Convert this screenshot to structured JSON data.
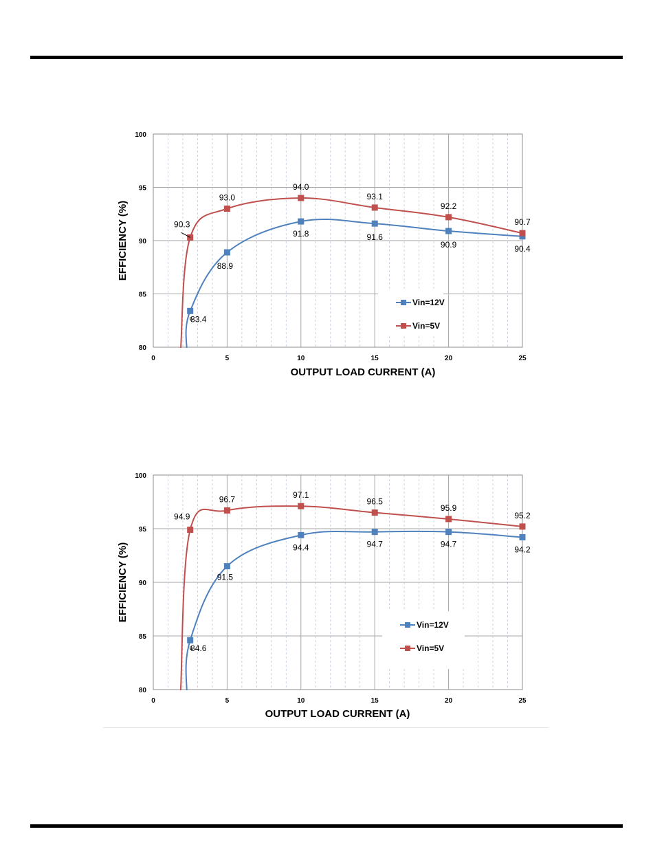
{
  "chart_data": [
    {
      "type": "line",
      "xlabel": "OUTPUT LOAD CURRENT  (A)",
      "ylabel": "EFFICIENCY (%)",
      "xlim": [
        0,
        25
      ],
      "ylim": [
        80,
        100
      ],
      "x_ticks": [
        "0",
        "5",
        "10",
        "15",
        "20",
        "25"
      ],
      "y_ticks": [
        "80",
        "85",
        "90",
        "95",
        "100"
      ],
      "grid": true,
      "legend_position": "bottom-right",
      "series": [
        {
          "name": "Vin=12V",
          "color": "#4F81BD",
          "x": [
            2.5,
            5,
            10,
            15,
            20,
            25
          ],
          "y": [
            83.4,
            88.9,
            91.8,
            91.6,
            90.9,
            90.4
          ],
          "labels": [
            "83.4",
            "88.9",
            "91.8",
            "91.6",
            "90.9",
            "90.4"
          ]
        },
        {
          "name": "Vin=5V",
          "color": "#C0504D",
          "x": [
            2.5,
            5,
            10,
            15,
            20,
            25
          ],
          "y": [
            90.3,
            93.0,
            94.0,
            93.1,
            92.2,
            90.7
          ],
          "labels": [
            "90.3",
            "93.0",
            "94.0",
            "93.1",
            "92.2",
            "90.7"
          ]
        }
      ]
    },
    {
      "type": "line",
      "xlabel": "OUTPUT LOAD CURRENT  (A)",
      "ylabel": "EFFICIENCY (%)",
      "xlim": [
        0,
        25
      ],
      "ylim": [
        80,
        100
      ],
      "x_ticks": [
        "0",
        "5",
        "10",
        "15",
        "20",
        "25"
      ],
      "y_ticks": [
        "80",
        "85",
        "90",
        "95",
        "100"
      ],
      "grid": true,
      "legend_position": "bottom-right",
      "series": [
        {
          "name": "Vin=12V",
          "color": "#4F81BD",
          "x": [
            2.5,
            5,
            10,
            15,
            20,
            25
          ],
          "y": [
            84.6,
            91.5,
            94.4,
            94.7,
            94.7,
            94.2
          ],
          "labels": [
            "84.6",
            "91.5",
            "94.4",
            "94.7",
            "94.7",
            "94.2"
          ]
        },
        {
          "name": "Vin=5V",
          "color": "#C0504D",
          "x": [
            2.5,
            5,
            10,
            15,
            20,
            25
          ],
          "y": [
            94.9,
            96.7,
            97.1,
            96.5,
            95.9,
            95.2
          ],
          "labels": [
            "94.9",
            "96.7",
            "97.1",
            "96.5",
            "95.9",
            "95.2"
          ]
        }
      ]
    }
  ]
}
